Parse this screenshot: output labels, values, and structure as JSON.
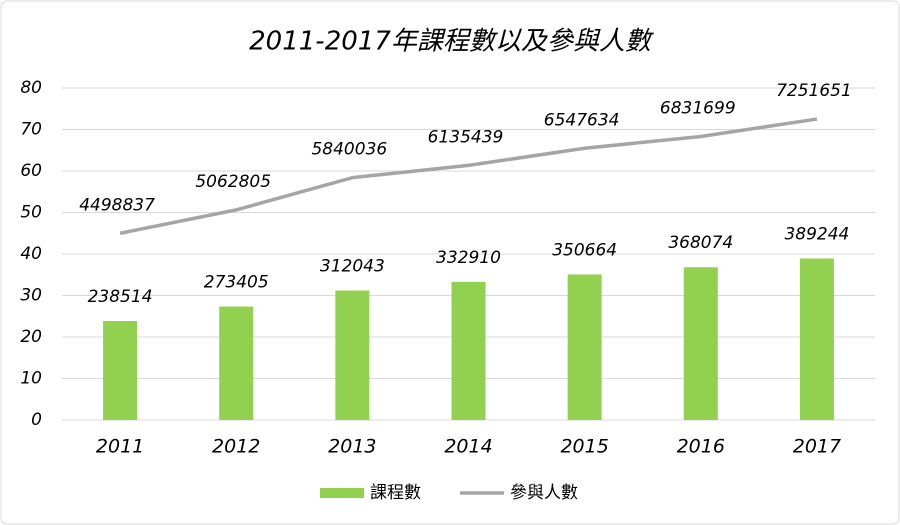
{
  "chart_data": {
    "type": "bar",
    "title": "2011-2017年課程數以及參與人數",
    "categories": [
      "2011",
      "2012",
      "2013",
      "2014",
      "2015",
      "2016",
      "2017"
    ],
    "series": [
      {
        "name": "課程數",
        "type": "bar",
        "color": "#92d050",
        "values": [
          23.8514,
          27.3405,
          31.2043,
          33.291,
          35.0664,
          36.8074,
          38.9244
        ],
        "value_labels": [
          "238514",
          "273405",
          "312043",
          "332910",
          "350664",
          "368074",
          "389244"
        ]
      },
      {
        "name": "參與人數",
        "type": "line",
        "color": "#a5a5a5",
        "values": [
          44.98837,
          50.62805,
          58.40036,
          61.35439,
          65.47634,
          68.31699,
          72.51651
        ],
        "value_labels": [
          "4498837",
          "5062805",
          "5840036",
          "6135439",
          "6547634",
          "6831699",
          "7251651"
        ]
      }
    ],
    "ylim": [
      0,
      80
    ],
    "yticks": [
      0,
      10,
      20,
      30,
      40,
      50,
      60,
      70,
      80
    ],
    "grid": true,
    "legend": "bottom"
  }
}
